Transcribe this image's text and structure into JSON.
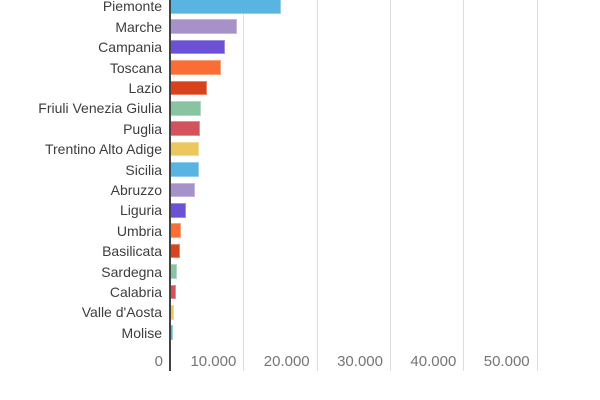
{
  "chart_data": {
    "type": "bar",
    "orientation": "horizontal",
    "title": "",
    "legend": "none",
    "grid": true,
    "categories": [
      "Piemonte",
      "Marche",
      "Campania",
      "Toscana",
      "Lazio",
      "Friuli Venezia Giulia",
      "Puglia",
      "Trentino Alto Adige",
      "Sicilia",
      "Abruzzo",
      "Liguria",
      "Umbria",
      "Basilicata",
      "Sardegna",
      "Calabria",
      "Valle d'Aosta",
      "Molise"
    ],
    "values": [
      15200,
      9200,
      7500,
      7000,
      5100,
      4200,
      4150,
      4000,
      3900,
      3450,
      2150,
      1450,
      1320,
      900,
      850,
      500,
      420
    ],
    "x_axis": {
      "range": [
        0,
        50000
      ],
      "ticks": [
        {
          "value": 0,
          "label": "0"
        },
        {
          "value": 10000,
          "label": "10.000"
        },
        {
          "value": 20000,
          "label": "20.000"
        },
        {
          "value": 30000,
          "label": "30.000"
        },
        {
          "value": 40000,
          "label": "40.000"
        },
        {
          "value": 50000,
          "label": "50.000"
        }
      ]
    },
    "palette": [
      "#5ab4e2",
      "#a691c8",
      "#6a51d5",
      "#fa6d35",
      "#d8431c",
      "#88c4a2",
      "#d4525b",
      "#ecc75e"
    ],
    "colors": {
      "background": "#ffffff",
      "axis_line": "#424242",
      "gridline": "#dedede",
      "category_label": "#3d3d3d",
      "tick_label": "#757575"
    }
  }
}
